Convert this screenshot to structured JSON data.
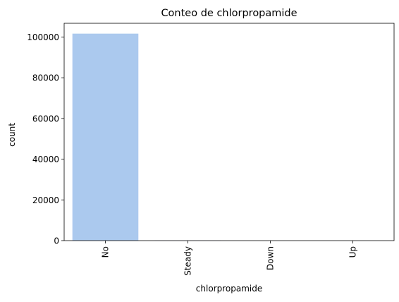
{
  "chart_data": {
    "type": "bar",
    "title": "Conteo de chlorpropamide",
    "xlabel": "chlorpropamide",
    "ylabel": "count",
    "categories": [
      "No",
      "Steady",
      "Down",
      "Up"
    ],
    "values": [
      101680,
      79,
      1,
      6
    ],
    "ylim": [
      0,
      106764
    ],
    "yticks": [
      0,
      20000,
      40000,
      60000,
      80000,
      100000
    ],
    "grid": false,
    "bar_color": "#abc9ee"
  }
}
